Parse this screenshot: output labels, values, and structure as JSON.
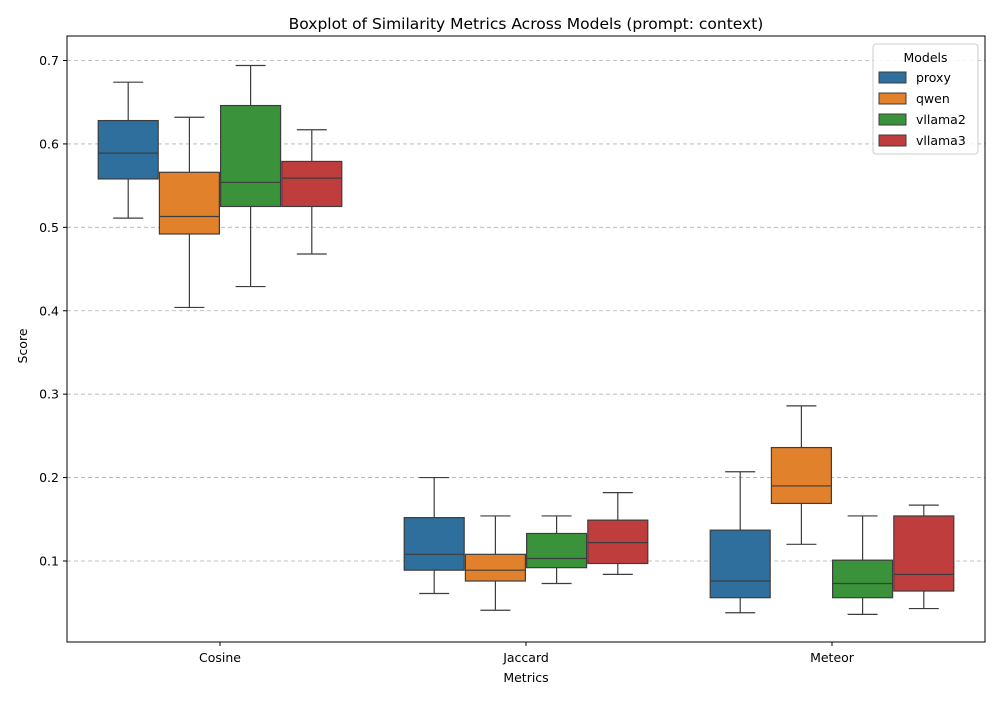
{
  "chart_data": {
    "type": "boxplot",
    "title": "Boxplot of Similarity Metrics Across Models (prompt: context)",
    "xlabel": "Metrics",
    "ylabel": "Score",
    "ylim": [
      0.0,
      0.73
    ],
    "yticks": [
      0.1,
      0.2,
      0.3,
      0.4,
      0.5,
      0.6,
      0.7
    ],
    "categories": [
      "Cosine",
      "Jaccard",
      "Meteor"
    ],
    "grid": "y-dashed",
    "legend": {
      "title": "Models",
      "position": "top-right"
    },
    "series": [
      {
        "name": "proxy",
        "color": "#2e6f9e",
        "boxes": [
          {
            "whisker_low": 0.511,
            "q1": 0.558,
            "median": 0.589,
            "q3": 0.628,
            "whisker_high": 0.674
          },
          {
            "whisker_low": 0.061,
            "q1": 0.089,
            "median": 0.108,
            "q3": 0.152,
            "whisker_high": 0.2
          },
          {
            "whisker_low": 0.038,
            "q1": 0.056,
            "median": 0.076,
            "q3": 0.137,
            "whisker_high": 0.207
          }
        ]
      },
      {
        "name": "qwen",
        "color": "#e1812c",
        "boxes": [
          {
            "whisker_low": 0.404,
            "q1": 0.492,
            "median": 0.513,
            "q3": 0.566,
            "whisker_high": 0.632
          },
          {
            "whisker_low": 0.041,
            "q1": 0.076,
            "median": 0.089,
            "q3": 0.108,
            "whisker_high": 0.154
          },
          {
            "whisker_low": 0.12,
            "q1": 0.169,
            "median": 0.19,
            "q3": 0.236,
            "whisker_high": 0.286
          }
        ]
      },
      {
        "name": "vllama2",
        "color": "#3a923a",
        "boxes": [
          {
            "whisker_low": 0.429,
            "q1": 0.525,
            "median": 0.554,
            "q3": 0.646,
            "whisker_high": 0.694
          },
          {
            "whisker_low": 0.073,
            "q1": 0.092,
            "median": 0.103,
            "q3": 0.133,
            "whisker_high": 0.154
          },
          {
            "whisker_low": 0.036,
            "q1": 0.056,
            "median": 0.073,
            "q3": 0.101,
            "whisker_high": 0.154
          }
        ]
      },
      {
        "name": "vllama3",
        "color": "#c03d3e",
        "boxes": [
          {
            "whisker_low": 0.468,
            "q1": 0.525,
            "median": 0.559,
            "q3": 0.579,
            "whisker_high": 0.617
          },
          {
            "whisker_low": 0.084,
            "q1": 0.097,
            "median": 0.122,
            "q3": 0.149,
            "whisker_high": 0.182
          },
          {
            "whisker_low": 0.043,
            "q1": 0.064,
            "median": 0.084,
            "q3": 0.154,
            "whisker_high": 0.167
          }
        ]
      }
    ]
  }
}
